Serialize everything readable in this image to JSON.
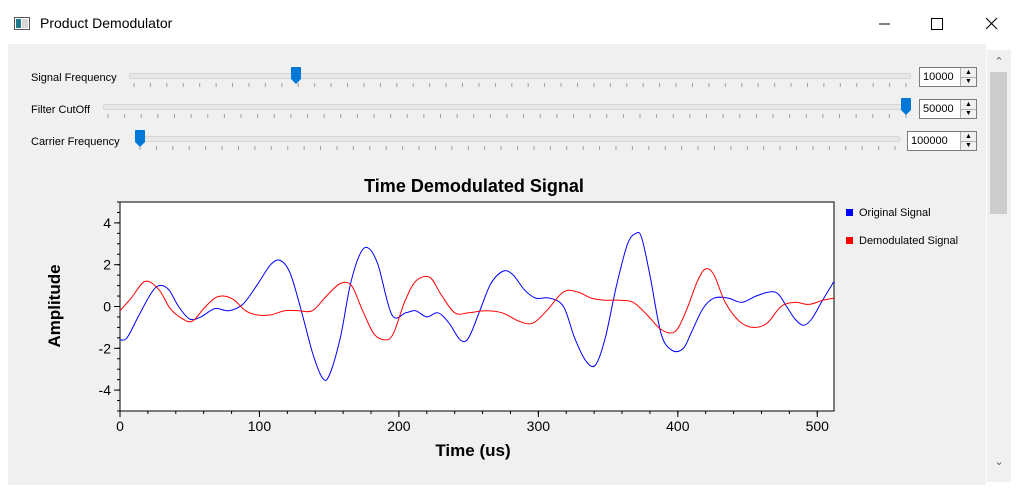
{
  "window": {
    "title": "Product Demodulator",
    "minimize_icon": "minimize-icon",
    "maximize_icon": "maximize-icon",
    "close_icon": "close-icon"
  },
  "controls": [
    {
      "label": "Signal Frequency",
      "value": "10000",
      "level": 0.21
    },
    {
      "label": "Filter CutOff",
      "value": "50000",
      "level": 1.0
    },
    {
      "label": "Carrier Frequency",
      "value": "100000",
      "level": 0.0
    }
  ],
  "chart_data": {
    "type": "line",
    "title": "Time Demodulated Signal",
    "xlabel": "Time (us)",
    "ylabel": "Amplitude",
    "xlim": [
      0,
      512
    ],
    "ylim": [
      -5,
      5
    ],
    "xticks": [
      "0",
      "100",
      "200",
      "300",
      "400",
      "500"
    ],
    "yticks": [
      "4",
      "2",
      "0",
      "-2",
      "-4"
    ],
    "grid": false,
    "legend_position": "right",
    "series": [
      {
        "name": "Original Signal",
        "color": "#0000ff",
        "x": [
          0,
          5,
          13,
          22,
          28,
          35,
          42,
          50,
          58,
          68,
          78,
          88,
          98,
          108,
          115,
          122,
          130,
          138,
          145,
          150,
          158,
          165,
          172,
          178,
          185,
          195,
          205,
          212,
          220,
          228,
          236,
          244,
          250,
          258,
          266,
          275,
          282,
          290,
          298,
          308,
          318,
          326,
          334,
          341,
          348,
          356,
          364,
          370,
          374,
          380,
          388,
          396,
          404,
          410,
          418,
          426,
          436,
          446,
          456,
          466,
          472,
          478,
          484,
          490,
          496,
          503,
          512
        ],
        "y": [
          -1.6,
          -1.5,
          -0.5,
          0.6,
          1.0,
          0.8,
          0.0,
          -0.6,
          -0.5,
          -0.1,
          -0.2,
          0.1,
          1.0,
          2.0,
          2.2,
          1.6,
          -0.2,
          -2.2,
          -3.4,
          -3.3,
          -1.5,
          1.0,
          2.5,
          2.8,
          2.0,
          -0.4,
          -0.3,
          -0.2,
          -0.5,
          -0.3,
          -0.8,
          -1.6,
          -1.5,
          -0.2,
          1.1,
          1.7,
          1.5,
          0.8,
          0.4,
          0.4,
          0.0,
          -1.5,
          -2.6,
          -2.8,
          -1.5,
          1.0,
          3.0,
          3.5,
          3.3,
          1.5,
          -1.3,
          -2.1,
          -2.0,
          -1.2,
          -0.1,
          0.4,
          0.4,
          0.2,
          0.5,
          0.7,
          0.6,
          0.0,
          -0.6,
          -0.9,
          -0.6,
          0.2,
          1.2
        ]
      },
      {
        "name": "Demodulated Signal",
        "color": "#ff0000",
        "x": [
          0,
          8,
          18,
          28,
          36,
          45,
          52,
          60,
          68,
          75,
          82,
          90,
          98,
          108,
          118,
          128,
          138,
          148,
          158,
          166,
          174,
          182,
          190,
          196,
          204,
          212,
          222,
          230,
          240,
          250,
          262,
          274,
          286,
          296,
          306,
          318,
          328,
          338,
          348,
          358,
          368,
          378,
          388,
          398,
          406,
          414,
          420,
          426,
          434,
          444,
          454,
          464,
          474,
          484,
          494,
          504,
          512
        ],
        "y": [
          -0.2,
          0.4,
          1.2,
          0.8,
          -0.1,
          -0.6,
          -0.7,
          -0.1,
          0.4,
          0.5,
          0.3,
          -0.2,
          -0.4,
          -0.4,
          -0.2,
          -0.2,
          -0.2,
          0.5,
          1.1,
          1.0,
          -0.2,
          -1.3,
          -1.6,
          -1.3,
          0.2,
          1.2,
          1.4,
          0.6,
          -0.3,
          -0.3,
          -0.2,
          -0.3,
          -0.7,
          -0.8,
          -0.2,
          0.7,
          0.7,
          0.4,
          0.3,
          0.3,
          0.2,
          -0.4,
          -1.1,
          -1.2,
          -0.2,
          1.2,
          1.8,
          1.5,
          0.2,
          -0.7,
          -1.0,
          -0.8,
          0.0,
          0.2,
          0.1,
          0.3,
          0.4
        ]
      }
    ]
  }
}
